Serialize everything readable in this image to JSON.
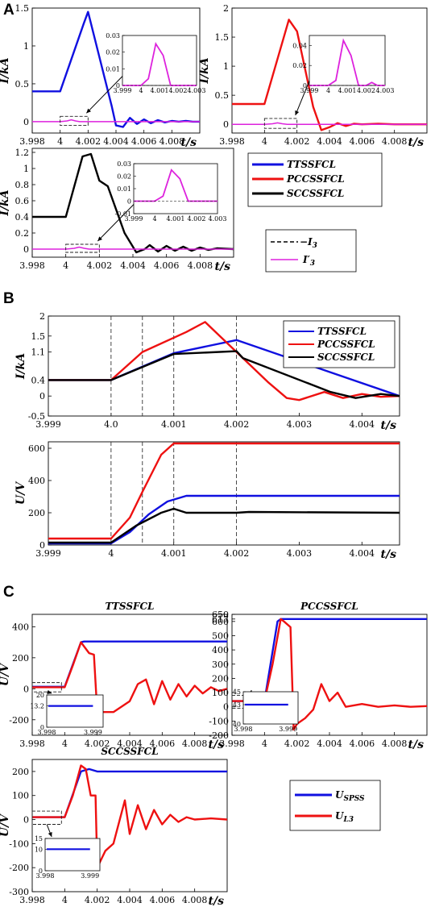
{
  "panel_labels": [
    "A",
    "B",
    "C"
  ],
  "legend_A": [
    {
      "label": "TTSSFCL",
      "color": "#1010e0",
      "style": "solid"
    },
    {
      "label": "PCCSSFCL",
      "color": "#ee1111",
      "style": "solid"
    },
    {
      "label": "SCCSSFCL",
      "color": "#000000",
      "style": "solid"
    }
  ],
  "legend_A2": [
    {
      "label": "−I",
      "sub": "3",
      "color": "#000000",
      "style": "dashed"
    },
    {
      "label": "I′",
      "sub": "3",
      "color": "#dd22dd",
      "style": "solid"
    }
  ],
  "legend_C": [
    {
      "label": "U",
      "sub": "SPSS",
      "color": "#1010e0"
    },
    {
      "label": "U",
      "sub": "L3",
      "color": "#ee1111"
    }
  ],
  "chart_data": [
    {
      "id": "A1",
      "type": "line",
      "ylabel": "I/kA",
      "xlabel": "t/s",
      "xlim": [
        3.998,
        4.01
      ],
      "ylim": [
        -0.15,
        1.5
      ],
      "xticks": [
        "3.998",
        "4",
        "4.002",
        "4.004",
        "4.006",
        "4.008"
      ],
      "yticks": [
        "0",
        "0.5",
        "1",
        "1.5"
      ],
      "series": [
        {
          "color": "#1010e0",
          "x": [
            3.998,
            4.0,
            4.0017,
            4.002,
            4.0037,
            4.004,
            4.0045,
            4.005,
            4.0055,
            4.006,
            4.0065,
            4.007,
            4.0075,
            4.008,
            4.0085,
            4.009,
            4.0095,
            4.01
          ],
          "y": [
            0.4,
            0.4,
            1.3,
            1.45,
            0.2,
            -0.05,
            -0.07,
            0.05,
            -0.03,
            0.03,
            -0.02,
            0.02,
            -0.01,
            0.01,
            0,
            0.01,
            0,
            0
          ]
        },
        {
          "color": "#dd22dd",
          "x": [
            3.998,
            4.0,
            4.0005,
            4.0008,
            4.0011,
            4.0014,
            4.002,
            4.01
          ],
          "y": [
            0,
            0,
            0.01,
            0.025,
            0.01,
            0,
            0,
            0
          ]
        }
      ],
      "inset": {
        "xlim": [
          3.999,
          4.003
        ],
        "ylim": [
          0,
          0.03
        ],
        "xticks": [
          "3.999",
          "4",
          "4.001",
          "4.002",
          "4.003"
        ],
        "yticks": [
          "0",
          "0.01",
          "0.02",
          "0.03"
        ],
        "x": [
          3.999,
          4.0,
          4.0004,
          4.0008,
          4.0012,
          4.0016,
          4.002,
          4.003
        ],
        "y": [
          0,
          0,
          0.004,
          0.025,
          0.018,
          0,
          0,
          0
        ]
      }
    },
    {
      "id": "A2",
      "type": "line",
      "ylabel": "I/kA",
      "xlabel": "t/s",
      "xlim": [
        3.998,
        4.01
      ],
      "ylim": [
        -0.15,
        2.0
      ],
      "xticks": [
        "3.998",
        "4",
        "4.002",
        "4.004",
        "4.006",
        "4.008"
      ],
      "yticks": [
        "0",
        "0.5",
        "1",
        "1.5",
        "2"
      ],
      "series": [
        {
          "color": "#ee1111",
          "x": [
            3.998,
            3.9995,
            4.0,
            4.0015,
            4.002,
            4.003,
            4.0035,
            4.004,
            4.0045,
            4.005,
            4.0055,
            4.006,
            4.007,
            4.008,
            4.009,
            4.01
          ],
          "y": [
            0.35,
            0.35,
            0.35,
            1.8,
            1.6,
            0.3,
            -0.1,
            -0.05,
            0.02,
            -0.03,
            0.01,
            0,
            0.01,
            0,
            0,
            0
          ]
        },
        {
          "color": "#dd22dd",
          "x": [
            3.998,
            4.0,
            4.0005,
            4.0008,
            4.0011,
            4.0014,
            4.002,
            4.01
          ],
          "y": [
            0,
            0,
            0.01,
            0.025,
            0.01,
            0,
            0,
            0
          ]
        }
      ],
      "inset": {
        "xlim": [
          3.999,
          4.003
        ],
        "ylim": [
          0,
          0.05
        ],
        "xticks": [
          "3.999",
          "4",
          "4.001",
          "4.002",
          "4.003"
        ],
        "yticks": [
          "0",
          "0.02",
          "0.04"
        ],
        "x": [
          3.999,
          4.0,
          4.0004,
          4.0008,
          4.0012,
          4.0016,
          4.002,
          4.0023,
          4.0026,
          4.003
        ],
        "y": [
          0,
          0,
          0.005,
          0.045,
          0.03,
          0,
          0,
          0.003,
          0,
          0
        ]
      }
    },
    {
      "id": "A3",
      "type": "line",
      "ylabel": "I/kA",
      "xlabel": "t/s",
      "xlim": [
        3.998,
        4.01
      ],
      "ylim": [
        -0.1,
        1.25
      ],
      "xticks": [
        "3.998",
        "4",
        "4.002",
        "4.004",
        "4.006",
        "4.008"
      ],
      "yticks": [
        "0",
        "0.2",
        "0.4",
        "0.6",
        "0.8",
        "1",
        "1.2"
      ],
      "series": [
        {
          "color": "#000000",
          "x": [
            3.998,
            3.9995,
            4.0,
            4.001,
            4.0015,
            4.002,
            4.0025,
            4.0035,
            4.0042,
            4.0047,
            4.005,
            4.0055,
            4.006,
            4.0065,
            4.007,
            4.0075,
            4.008,
            4.0085,
            4.009,
            4.01
          ],
          "y": [
            0.4,
            0.4,
            0.4,
            1.15,
            1.18,
            0.85,
            0.78,
            0.2,
            -0.04,
            0.0,
            0.05,
            -0.03,
            0.04,
            -0.02,
            0.03,
            -0.02,
            0.02,
            -0.01,
            0.01,
            0.0
          ]
        },
        {
          "color": "#dd22dd",
          "x": [
            3.998,
            4.0,
            4.0005,
            4.0008,
            4.0011,
            4.0014,
            4.002,
            4.01
          ],
          "y": [
            0,
            0,
            0.01,
            0.025,
            0.01,
            0,
            0,
            0
          ]
        }
      ],
      "inset": {
        "xlim": [
          3.999,
          4.003
        ],
        "ylim": [
          -0.01,
          0.03
        ],
        "xticks": [
          "3.999",
          "4",
          "4.001",
          "4.002",
          "4.003"
        ],
        "yticks": [
          "-0.01",
          "0",
          "0.01",
          "0.02",
          "0.03"
        ],
        "x": [
          3.999,
          4.0,
          4.0004,
          4.0008,
          4.0012,
          4.0016,
          4.002,
          4.003
        ],
        "y": [
          0,
          0,
          0.004,
          0.025,
          0.018,
          0,
          0,
          0
        ]
      }
    },
    {
      "id": "B1",
      "type": "line",
      "ylabel": "I/kA",
      "xlabel": "t/s",
      "xlim": [
        3.999,
        4.0046
      ],
      "ylim": [
        -0.5,
        2.0
      ],
      "xticks": [
        "3.999",
        "4.0",
        "4.001",
        "4.002",
        "4.003",
        "4.004"
      ],
      "yticks": [
        "-0.5",
        "0",
        "0.4",
        "1.1",
        "1.5",
        "2"
      ],
      "vlines": [
        4.0,
        4.0005,
        4.001,
        4.002
      ],
      "series": [
        {
          "name": "TTSSFCL",
          "color": "#1010e0",
          "x": [
            3.999,
            4.0,
            4.001,
            4.002,
            4.0046
          ],
          "y": [
            0.4,
            0.4,
            1.07,
            1.4,
            0.0
          ]
        },
        {
          "name": "PCCSSFCL",
          "color": "#ee1111",
          "x": [
            3.999,
            4.0,
            4.0005,
            4.0012,
            4.0015,
            4.0025,
            4.0028,
            4.003,
            4.0034,
            4.0037,
            4.004,
            4.0043,
            4.0046
          ],
          "y": [
            0.4,
            0.4,
            1.1,
            1.6,
            1.85,
            0.35,
            -0.05,
            -0.1,
            0.1,
            -0.05,
            0.05,
            -0.02,
            0.0
          ]
        },
        {
          "name": "SCCSSFCL",
          "color": "#000000",
          "x": [
            3.999,
            4.0,
            4.001,
            4.002,
            4.0021,
            4.0035,
            4.0039,
            4.0043,
            4.0046
          ],
          "y": [
            0.4,
            0.4,
            1.05,
            1.12,
            0.95,
            0.1,
            -0.05,
            0.05,
            0.0
          ]
        }
      ]
    },
    {
      "id": "B2",
      "type": "line",
      "ylabel": "U/V",
      "xlabel": "t/s",
      "xlim": [
        3.999,
        4.0046
      ],
      "ylim": [
        0,
        640
      ],
      "xticks": [
        "3.999",
        "4",
        "4.001",
        "4.002",
        "4.003",
        "4.004"
      ],
      "yticks": [
        "0",
        "200",
        "400",
        "600"
      ],
      "vlines": [
        4.0,
        4.0005,
        4.001,
        4.002
      ],
      "series": [
        {
          "name": "TTSSFCL",
          "color": "#1010e0",
          "x": [
            3.999,
            4.0,
            4.0003,
            4.0006,
            4.0009,
            4.0012,
            4.0046
          ],
          "y": [
            10,
            10,
            80,
            190,
            270,
            305,
            305
          ]
        },
        {
          "name": "PCCSSFCL",
          "color": "#ee1111",
          "x": [
            3.999,
            4.0,
            4.0003,
            4.0005,
            4.0008,
            4.001,
            4.0046
          ],
          "y": [
            40,
            40,
            170,
            330,
            560,
            630,
            630
          ]
        },
        {
          "name": "SCCSSFCL",
          "color": "#000000",
          "x": [
            3.999,
            4.0,
            4.0004,
            4.0008,
            4.001,
            4.0012,
            4.002,
            4.0022,
            4.0046
          ],
          "y": [
            15,
            15,
            120,
            200,
            225,
            200,
            200,
            205,
            200
          ]
        }
      ]
    },
    {
      "id": "C1",
      "type": "line",
      "title": "TTSSFCL",
      "ylabel": "U/V",
      "xlabel": "t/s",
      "xlim": [
        3.998,
        4.01
      ],
      "ylim": [
        -300,
        480
      ],
      "xticks": [
        "3.998",
        "4",
        "4.002",
        "4.004",
        "4.006",
        "4.008"
      ],
      "yticks": [
        "-200",
        "0",
        "200",
        "400"
      ],
      "series": [
        {
          "color": "#1010e0",
          "x": [
            3.998,
            4.0,
            4.001,
            4.0012,
            4.01
          ],
          "y": [
            13,
            13,
            300,
            305,
            305
          ]
        },
        {
          "color": "#ee1111",
          "x": [
            3.998,
            4.0,
            4.0005,
            4.001,
            4.0015,
            4.0018,
            4.002,
            4.003,
            4.004,
            4.0045,
            4.005,
            4.0055,
            4.006,
            4.0065,
            4.007,
            4.0075,
            4.008,
            4.0085,
            4.009,
            4.0095,
            4.01
          ],
          "y": [
            10,
            10,
            150,
            300,
            230,
            220,
            -150,
            -150,
            -80,
            30,
            60,
            -100,
            50,
            -70,
            30,
            -50,
            20,
            -30,
            10,
            -15,
            0
          ]
        }
      ],
      "inset": {
        "ylim": [
          0,
          20
        ],
        "yticks": [
          "0",
          "13.2",
          "20"
        ],
        "xticks": [
          "3.998",
          "3.999"
        ]
      }
    },
    {
      "id": "C2",
      "type": "line",
      "title": "PCCSSFCL",
      "ylabel": "",
      "xlabel": "t/s",
      "xlim": [
        3.998,
        4.01
      ],
      "ylim": [
        -200,
        650
      ],
      "xticks": [
        "3.998",
        "4",
        "4.002",
        "4.004",
        "4.006",
        "4.008"
      ],
      "yticks": [
        "-200",
        "-100",
        "0",
        "100",
        "200",
        "300",
        "400",
        "500",
        "600",
        "617",
        "650"
      ],
      "series": [
        {
          "color": "#1010e0",
          "x": [
            3.998,
            4.0,
            4.0008,
            4.001,
            4.01
          ],
          "y": [
            40,
            40,
            600,
            617,
            617
          ]
        },
        {
          "color": "#ee1111",
          "x": [
            3.998,
            4.0,
            4.0005,
            4.001,
            4.0012,
            4.0016,
            4.0018,
            4.002,
            4.0025,
            4.003,
            4.0035,
            4.004,
            4.0045,
            4.005,
            4.006,
            4.007,
            4.008,
            4.009,
            4.01
          ],
          "y": [
            40,
            40,
            300,
            617,
            600,
            560,
            -160,
            -120,
            -80,
            -20,
            160,
            40,
            100,
            0,
            20,
            0,
            10,
            0,
            5
          ]
        }
      ],
      "inset": {
        "ylim": [
          40,
          45
        ],
        "yticks": [
          "40",
          "43",
          "45"
        ],
        "xticks": [
          "3.998",
          "3.999"
        ]
      }
    },
    {
      "id": "C3",
      "type": "line",
      "title": "SCCSSFCL",
      "ylabel": "U/V",
      "xlabel": "t/s",
      "xlim": [
        3.998,
        4.01
      ],
      "ylim": [
        -300,
        250
      ],
      "xticks": [
        "3.998",
        "4",
        "4.002",
        "4.004",
        "4.006",
        "4.008"
      ],
      "yticks": [
        "-300",
        "-200",
        "-100",
        "0",
        "100",
        "200"
      ],
      "series": [
        {
          "color": "#1010e0",
          "x": [
            3.998,
            4.0,
            4.001,
            4.0015,
            4.002,
            4.01
          ],
          "y": [
            10,
            10,
            200,
            210,
            200,
            200
          ]
        },
        {
          "color": "#ee1111",
          "x": [
            3.998,
            4.0,
            4.0005,
            4.001,
            4.0013,
            4.0016,
            4.0019,
            4.002,
            4.0025,
            4.003,
            4.0037,
            4.004,
            4.0045,
            4.005,
            4.0055,
            4.006,
            4.0065,
            4.007,
            4.0075,
            4.008,
            4.009,
            4.01
          ],
          "y": [
            10,
            10,
            100,
            225,
            210,
            100,
            100,
            -200,
            -130,
            -100,
            80,
            -60,
            60,
            -40,
            40,
            -20,
            20,
            -10,
            10,
            0,
            5,
            0
          ]
        }
      ],
      "inset": {
        "ylim": [
          0,
          15
        ],
        "yticks": [
          "0",
          "10",
          "15"
        ],
        "xticks": [
          "3.998",
          "3.999"
        ]
      }
    }
  ]
}
